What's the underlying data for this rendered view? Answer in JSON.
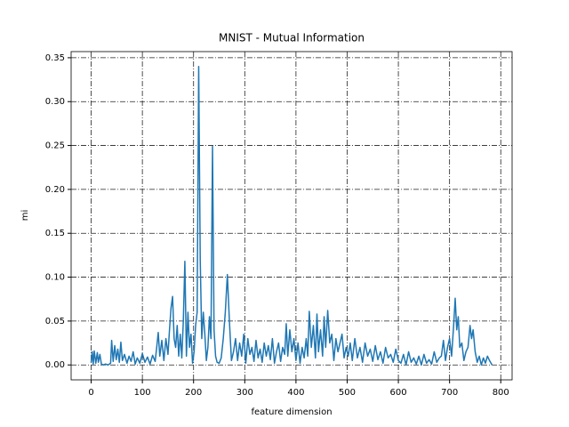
{
  "chart_data": {
    "type": "line",
    "title": "MNIST - Mutual Information",
    "xlabel": "feature dimension",
    "ylabel": "mi",
    "color": "#1f77b4",
    "grid": true,
    "x": [
      0,
      2,
      4,
      6,
      9,
      12,
      14,
      17,
      20,
      24,
      28,
      33,
      38,
      40,
      43,
      46,
      49,
      52,
      55,
      58,
      61,
      65,
      70,
      74,
      78,
      82,
      86,
      90,
      95,
      100,
      105,
      110,
      115,
      120,
      125,
      128,
      131,
      134,
      138,
      142,
      146,
      150,
      153,
      156,
      159,
      162,
      165,
      168,
      171,
      174,
      177,
      180,
      183,
      186,
      189,
      192,
      195,
      198,
      201,
      204,
      207,
      210,
      213,
      216,
      219,
      222,
      225,
      228,
      231,
      234,
      237,
      240,
      243,
      246,
      250,
      254,
      258,
      262,
      266,
      270,
      274,
      278,
      282,
      286,
      290,
      294,
      298,
      302,
      306,
      310,
      314,
      318,
      322,
      326,
      330,
      334,
      338,
      342,
      346,
      350,
      354,
      358,
      362,
      366,
      370,
      374,
      378,
      381,
      384,
      388,
      392,
      396,
      400,
      404,
      408,
      412,
      416,
      420,
      423,
      426,
      430,
      434,
      438,
      441,
      444,
      448,
      452,
      455,
      458,
      462,
      466,
      470,
      474,
      478,
      482,
      486,
      490,
      494,
      498,
      502,
      506,
      510,
      515,
      520,
      525,
      530,
      535,
      540,
      545,
      550,
      555,
      560,
      565,
      570,
      575,
      580,
      585,
      590,
      595,
      600,
      605,
      610,
      615,
      620,
      625,
      630,
      635,
      640,
      645,
      650,
      655,
      660,
      665,
      670,
      675,
      680,
      684,
      688,
      692,
      696,
      700,
      704,
      708,
      711,
      714,
      717,
      720,
      724,
      728,
      732,
      736,
      740,
      743,
      746,
      750,
      754,
      758,
      762,
      766,
      770,
      774,
      778,
      783
    ],
    "values": [
      0.003,
      0.015,
      0.001,
      0.016,
      0.002,
      0.014,
      0.003,
      0.012,
      0.001,
      0.0,
      0.001,
      0.0,
      0.002,
      0.028,
      0.004,
      0.022,
      0.006,
      0.018,
      0.003,
      0.026,
      0.005,
      0.012,
      0.002,
      0.01,
      0.004,
      0.015,
      0.001,
      0.008,
      0.002,
      0.013,
      0.003,
      0.009,
      0.001,
      0.011,
      0.004,
      0.02,
      0.037,
      0.01,
      0.028,
      0.005,
      0.03,
      0.012,
      0.04,
      0.065,
      0.078,
      0.03,
      0.02,
      0.045,
      0.01,
      0.035,
      0.008,
      0.05,
      0.118,
      0.01,
      0.06,
      0.02,
      0.035,
      0.002,
      0.015,
      0.045,
      0.06,
      0.34,
      0.12,
      0.03,
      0.06,
      0.035,
      0.005,
      0.02,
      0.055,
      0.03,
      0.249,
      0.04,
      0.01,
      0.003,
      0.002,
      0.008,
      0.03,
      0.06,
      0.103,
      0.05,
      0.005,
      0.015,
      0.03,
      0.005,
      0.025,
      0.01,
      0.035,
      0.002,
      0.03,
      0.012,
      0.02,
      0.004,
      0.028,
      0.008,
      0.018,
      0.003,
      0.025,
      0.01,
      0.022,
      0.006,
      0.03,
      0.002,
      0.015,
      0.025,
      0.004,
      0.02,
      0.012,
      0.047,
      0.01,
      0.04,
      0.015,
      0.03,
      0.005,
      0.025,
      0.002,
      0.02,
      0.008,
      0.03,
      0.01,
      0.061,
      0.02,
      0.045,
      0.008,
      0.058,
      0.015,
      0.04,
      0.01,
      0.055,
      0.02,
      0.062,
      0.025,
      0.035,
      0.005,
      0.03,
      0.015,
      0.025,
      0.035,
      0.008,
      0.02,
      0.01,
      0.025,
      0.005,
      0.03,
      0.008,
      0.02,
      0.003,
      0.025,
      0.01,
      0.018,
      0.004,
      0.022,
      0.006,
      0.015,
      0.002,
      0.02,
      0.008,
      0.012,
      0.003,
      0.018,
      0.005,
      0.002,
      0.012,
      0.0,
      0.015,
      0.003,
      0.008,
      0.001,
      0.01,
      0.0,
      0.012,
      0.002,
      0.006,
      0.001,
      0.015,
      0.003,
      0.008,
      0.01,
      0.028,
      0.005,
      0.02,
      0.03,
      0.01,
      0.045,
      0.076,
      0.04,
      0.055,
      0.02,
      0.025,
      0.005,
      0.015,
      0.02,
      0.045,
      0.03,
      0.04,
      0.015,
      0.003,
      0.01,
      0.0,
      0.008,
      0.002,
      0.01,
      0.005,
      0.0
    ],
    "xlim": [
      -39.15,
      822.15
    ],
    "ylim": [
      -0.017,
      0.357
    ],
    "xticks": [
      0,
      100,
      200,
      300,
      400,
      500,
      600,
      700,
      800
    ],
    "yticks": [
      {
        "value": 0,
        "label": "0.00"
      },
      {
        "value": 0.05,
        "label": "0.05"
      },
      {
        "value": 0.1,
        "label": "0.10"
      },
      {
        "value": 0.15,
        "label": "0.15"
      },
      {
        "value": 0.2,
        "label": "0.20"
      },
      {
        "value": 0.25,
        "label": "0.25"
      },
      {
        "value": 0.3,
        "label": "0.30"
      },
      {
        "value": 0.35,
        "label": "0.35"
      }
    ]
  }
}
